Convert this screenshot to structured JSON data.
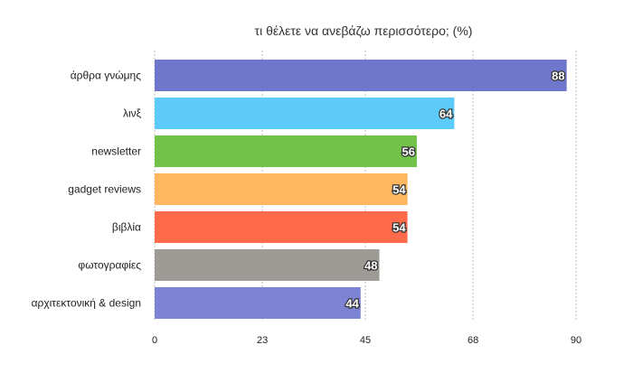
{
  "chart_data": {
    "type": "bar",
    "orientation": "horizontal",
    "title": "τι θέλετε να ανεβάζω περισσότερο; (%)",
    "xlabel": "",
    "ylabel": "",
    "categories": [
      "άρθρα γνώμης",
      "λινξ",
      "newsletter",
      "gadget reviews",
      "βιβλία",
      "φωτογραφίες",
      "αρχιτεκτονική & design"
    ],
    "values": [
      88,
      64,
      56,
      54,
      54,
      48,
      44
    ],
    "colors": [
      "#6f77cc",
      "#5ccbf9",
      "#72c24a",
      "#ffb65c",
      "#ff6a4a",
      "#9e9b97",
      "#7b83d2"
    ],
    "xlim": [
      0,
      90
    ],
    "ticks": [
      "0",
      "23",
      "45",
      "68",
      "90"
    ],
    "grid": true,
    "data_labels": true
  }
}
